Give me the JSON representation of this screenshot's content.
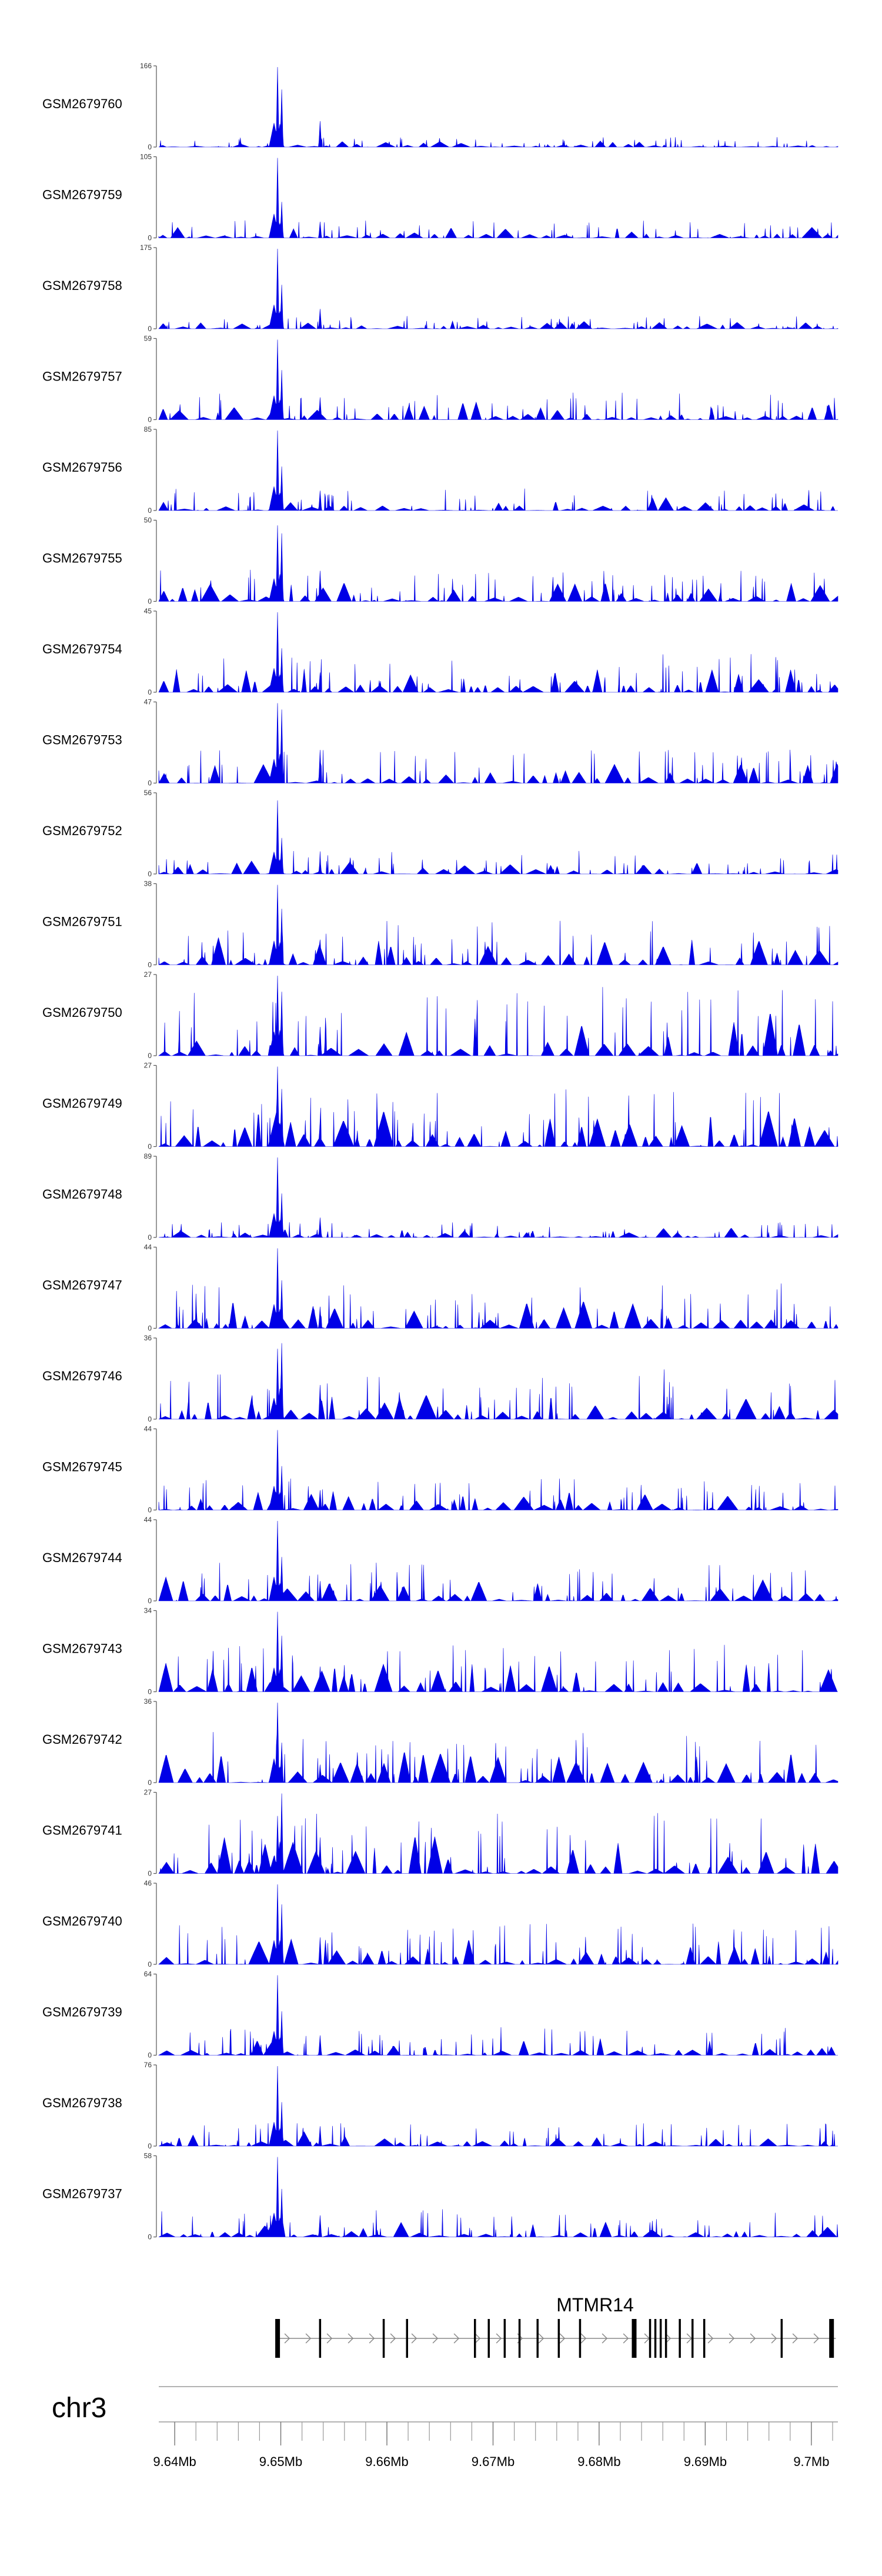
{
  "chart_data": {
    "type": "area",
    "title": "",
    "xlabel": "",
    "ylabel": "",
    "chromosome": "chr3",
    "xlim": [
      9.6385,
      9.7025
    ],
    "x_unit": "Mb",
    "x_ticks": [
      {
        "value": 9.64,
        "label": "9.64Mb"
      },
      {
        "value": 9.65,
        "label": "9.65Mb"
      },
      {
        "value": 9.66,
        "label": "9.66Mb"
      },
      {
        "value": 9.67,
        "label": "9.67Mb"
      },
      {
        "value": 9.68,
        "label": "9.68Mb"
      },
      {
        "value": 9.69,
        "label": "9.69Mb"
      },
      {
        "value": 9.7,
        "label": "9.7Mb"
      }
    ],
    "minor_tick_step_mb": 0.002,
    "tracks": [
      {
        "name": "GSM2679760",
        "ymax": "166",
        "ymin": "0",
        "seed": 1,
        "peak": 1.0,
        "bg": 0.08,
        "secondary": 0.72
      },
      {
        "name": "GSM2679759",
        "ymax": "105",
        "ymin": "0",
        "seed": 2,
        "peak": 1.0,
        "bg": 0.14,
        "secondary": 0.45
      },
      {
        "name": "GSM2679758",
        "ymax": "175",
        "ymin": "0",
        "seed": 3,
        "peak": 1.0,
        "bg": 0.1,
        "secondary": 0.55
      },
      {
        "name": "GSM2679757",
        "ymax": "59",
        "ymin": "0",
        "seed": 4,
        "peak": 1.0,
        "bg": 0.22,
        "secondary": 0.62
      },
      {
        "name": "GSM2679756",
        "ymax": "85",
        "ymin": "0",
        "seed": 5,
        "peak": 1.0,
        "bg": 0.18,
        "secondary": 0.55
      },
      {
        "name": "GSM2679755",
        "ymax": "50",
        "ymin": "0",
        "seed": 6,
        "peak": 0.95,
        "bg": 0.25,
        "secondary": 0.85
      },
      {
        "name": "GSM2679754",
        "ymax": "45",
        "ymin": "0",
        "seed": 7,
        "peak": 1.0,
        "bg": 0.3,
        "secondary": 0.55
      },
      {
        "name": "GSM2679753",
        "ymax": "47",
        "ymin": "0",
        "seed": 8,
        "peak": 1.0,
        "bg": 0.28,
        "secondary": 0.92
      },
      {
        "name": "GSM2679752",
        "ymax": "56",
        "ymin": "0",
        "seed": 9,
        "peak": 0.92,
        "bg": 0.18,
        "secondary": 0.45
      },
      {
        "name": "GSM2679751",
        "ymax": "38",
        "ymin": "0",
        "seed": 10,
        "peak": 1.0,
        "bg": 0.35,
        "secondary": 0.7
      },
      {
        "name": "GSM2679750",
        "ymax": "27",
        "ymin": "0",
        "seed": 11,
        "peak": 1.0,
        "bg": 0.55,
        "secondary": 0.8
      },
      {
        "name": "GSM2679749",
        "ymax": "27",
        "ymin": "0",
        "seed": 12,
        "peak": 1.0,
        "bg": 0.45,
        "secondary": 0.72
      },
      {
        "name": "GSM2679748",
        "ymax": "89",
        "ymin": "0",
        "seed": 13,
        "peak": 1.0,
        "bg": 0.12,
        "secondary": 0.55
      },
      {
        "name": "GSM2679747",
        "ymax": "44",
        "ymin": "0",
        "seed": 14,
        "peak": 1.0,
        "bg": 0.35,
        "secondary": 0.6
      },
      {
        "name": "GSM2679746",
        "ymax": "36",
        "ymin": "0",
        "seed": 15,
        "peak": 0.88,
        "bg": 0.4,
        "secondary": 0.95
      },
      {
        "name": "GSM2679745",
        "ymax": "44",
        "ymin": "0",
        "seed": 16,
        "peak": 1.0,
        "bg": 0.25,
        "secondary": 0.55
      },
      {
        "name": "GSM2679744",
        "ymax": "44",
        "ymin": "0",
        "seed": 17,
        "peak": 1.0,
        "bg": 0.3,
        "secondary": 0.55
      },
      {
        "name": "GSM2679743",
        "ymax": "34",
        "ymin": "0",
        "seed": 18,
        "peak": 1.0,
        "bg": 0.38,
        "secondary": 0.7
      },
      {
        "name": "GSM2679742",
        "ymax": "36",
        "ymin": "0",
        "seed": 19,
        "peak": 1.0,
        "bg": 0.4,
        "secondary": 0.5
      },
      {
        "name": "GSM2679741",
        "ymax": "27",
        "ymin": "0",
        "seed": 20,
        "peak": 0.72,
        "bg": 0.48,
        "secondary": 1.0
      },
      {
        "name": "GSM2679740",
        "ymax": "46",
        "ymin": "0",
        "seed": 21,
        "peak": 1.0,
        "bg": 0.32,
        "secondary": 0.75
      },
      {
        "name": "GSM2679739",
        "ymax": "64",
        "ymin": "0",
        "seed": 22,
        "peak": 1.0,
        "bg": 0.22,
        "secondary": 0.55
      },
      {
        "name": "GSM2679738",
        "ymax": "76",
        "ymin": "0",
        "seed": 23,
        "peak": 1.0,
        "bg": 0.18,
        "secondary": 0.55
      },
      {
        "name": "GSM2679737",
        "ymax": "58",
        "ymin": "0",
        "seed": 24,
        "peak": 1.0,
        "bg": 0.22,
        "secondary": 0.6
      }
    ],
    "gene": {
      "name": "MTMR14",
      "start": 9.6497,
      "end": 9.7023,
      "exons": [
        9.6497,
        9.6537,
        9.6597,
        9.6619,
        9.6683,
        9.6696,
        9.6711,
        9.6725,
        9.6742,
        9.6762,
        9.6782,
        9.6833,
        9.6848,
        9.6853,
        9.6858,
        9.6863,
        9.6876,
        9.6888,
        9.6899,
        9.6972,
        9.7019
      ]
    },
    "colors": {
      "signal": "#0000e6",
      "axis": "#555555",
      "gene": "#000000",
      "intron": "#888888"
    }
  }
}
